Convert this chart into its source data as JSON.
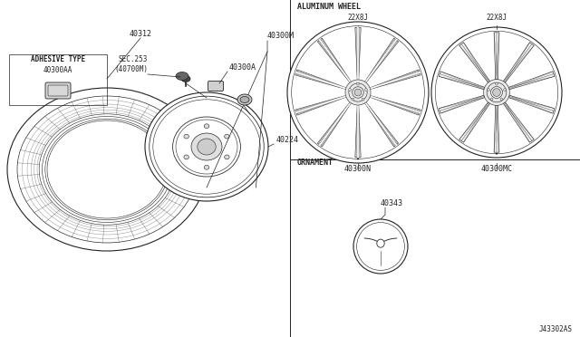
{
  "bg_color": "#ffffff",
  "line_color": "#222222",
  "label_font_size": 6,
  "small_font_size": 5.5,
  "diagram_title": "J43302AS",
  "labels": {
    "tire": "40312",
    "wheel_front": "40300M",
    "wheel_back": "40224",
    "valve": "40300A",
    "sec": "SEC.253\n(40700M)",
    "adhesive_type": "ADHESIVE TYPE",
    "adhesive_part": "40300AA",
    "aluminum_wheel": "ALUMINUM WHEEL",
    "wheel1_size": "22X8J",
    "wheel2_size": "22X8J",
    "wheel1_part": "40300N",
    "wheel2_part": "40300MC",
    "ornament": "ORNAMENT",
    "ornament_part": "40343"
  }
}
